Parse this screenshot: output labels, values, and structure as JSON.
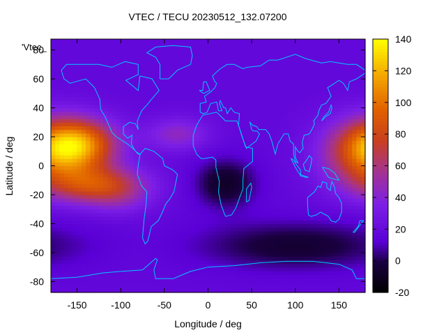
{
  "chart_data": {
    "type": "heatmap",
    "title": "VTEC / TECU 20230512_132.07200",
    "xlabel": "Longitude / deg",
    "ylabel": "Latitude / deg",
    "legend_key": "'Vtec_",
    "xlim": [
      -180,
      180
    ],
    "ylim": [
      -87.5,
      87.5
    ],
    "x_ticks": [
      -150,
      -100,
      -50,
      0,
      50,
      100,
      150
    ],
    "y_ticks": [
      -80,
      -60,
      -40,
      -20,
      0,
      20,
      40,
      60,
      80
    ],
    "colorbar": {
      "range": [
        -20,
        140
      ],
      "ticks": [
        -20,
        0,
        20,
        40,
        60,
        80,
        100,
        120,
        140
      ],
      "palette": [
        [
          0,
          "#000000"
        ],
        [
          0.12,
          "#1a0040"
        ],
        [
          0.2,
          "#5a00d6"
        ],
        [
          0.35,
          "#7d1fe6"
        ],
        [
          0.48,
          "#a5338f"
        ],
        [
          0.6,
          "#c8401f"
        ],
        [
          0.72,
          "#e06000"
        ],
        [
          0.86,
          "#f5a800"
        ],
        [
          1.0,
          "#ffff00"
        ]
      ]
    },
    "vtec_background": 18,
    "vtec_features": [
      {
        "lon": -150,
        "lat": 15,
        "peak": 98,
        "sx": 32,
        "sy": 12
      },
      {
        "lon": -125,
        "lat": -13,
        "peak": 78,
        "sx": 38,
        "sy": 9
      },
      {
        "lon": 180,
        "lat": 8,
        "peak": 78,
        "sx": 35,
        "sy": 17
      },
      {
        "lon": -35,
        "lat": 22,
        "peak": 45,
        "sx": 25,
        "sy": 8
      },
      {
        "lon": 20,
        "lat": -12,
        "peak": -8,
        "sx": 25,
        "sy": 12
      },
      {
        "lon": 100,
        "lat": -55,
        "peak": -5,
        "sx": 80,
        "sy": 12
      },
      {
        "lon": -100,
        "lat": -25,
        "peak": 30,
        "sx": 25,
        "sy": 8
      }
    ],
    "coastline_color": "#00c8ff",
    "grid": false,
    "legend_position": "top-left"
  }
}
